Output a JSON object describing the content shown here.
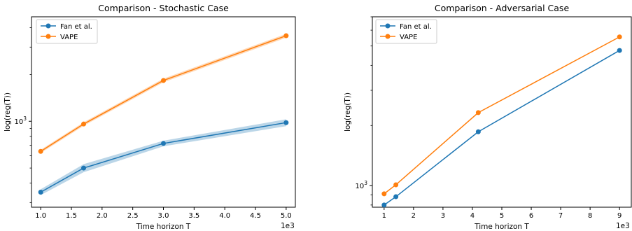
{
  "colors": {
    "series1": "#1f77b4",
    "series2": "#ff7f0e"
  },
  "chart_data": [
    {
      "type": "line",
      "title": "Comparison - Stochastic Case",
      "xlabel": "Time horizon T",
      "ylabel": "log(reg(T))",
      "x_multiplier_label": "1e3",
      "x": [
        1.0,
        1.7,
        3.0,
        5.0
      ],
      "xlim": [
        0.85,
        5.15
      ],
      "xticks": [
        1.0,
        1.5,
        2.0,
        2.5,
        3.0,
        3.5,
        4.0,
        4.5,
        5.0
      ],
      "xtick_labels": [
        "1.0",
        "1.5",
        "2.0",
        "2.5",
        "3.0",
        "3.5",
        "4.0",
        "4.5",
        "5.0"
      ],
      "yscale": "log",
      "ylim": [
        280,
        4700
      ],
      "yticks": [
        1000
      ],
      "ytick_labels": [
        "10^3"
      ],
      "legend_position": "top-left",
      "grid": false,
      "series": [
        {
          "name": "Fan et al.",
          "values": [
            350,
            500,
            720,
            980
          ],
          "band_lower": [
            335,
            470,
            690,
            930
          ],
          "band_upper": [
            365,
            530,
            750,
            1030
          ]
        },
        {
          "name": "VAPE",
          "values": [
            640,
            960,
            1830,
            3550
          ],
          "band_lower": [
            625,
            935,
            1780,
            3450
          ],
          "band_upper": [
            655,
            985,
            1880,
            3650
          ]
        }
      ]
    },
    {
      "type": "line",
      "title": "Comparison - Adversarial Case",
      "xlabel": "Time horizon T",
      "ylabel": "log(reg(T))",
      "x_multiplier_label": "1e3",
      "x": [
        1.0,
        1.4,
        4.2,
        9.0
      ],
      "xlim": [
        0.6,
        9.4
      ],
      "xticks": [
        1,
        2,
        3,
        4,
        5,
        6,
        7,
        8,
        9
      ],
      "xtick_labels": [
        "1",
        "2",
        "3",
        "4",
        "5",
        "6",
        "7",
        "8",
        "9"
      ],
      "yscale": "log",
      "ylim": [
        780,
        7000
      ],
      "yticks": [
        1000
      ],
      "ytick_labels": [
        "10^3"
      ],
      "legend_position": "top-left",
      "grid": false,
      "series": [
        {
          "name": "Fan et al.",
          "values": [
            800,
            880,
            1860,
            4750
          ]
        },
        {
          "name": "VAPE",
          "values": [
            910,
            1010,
            2320,
            5550
          ]
        }
      ]
    }
  ]
}
